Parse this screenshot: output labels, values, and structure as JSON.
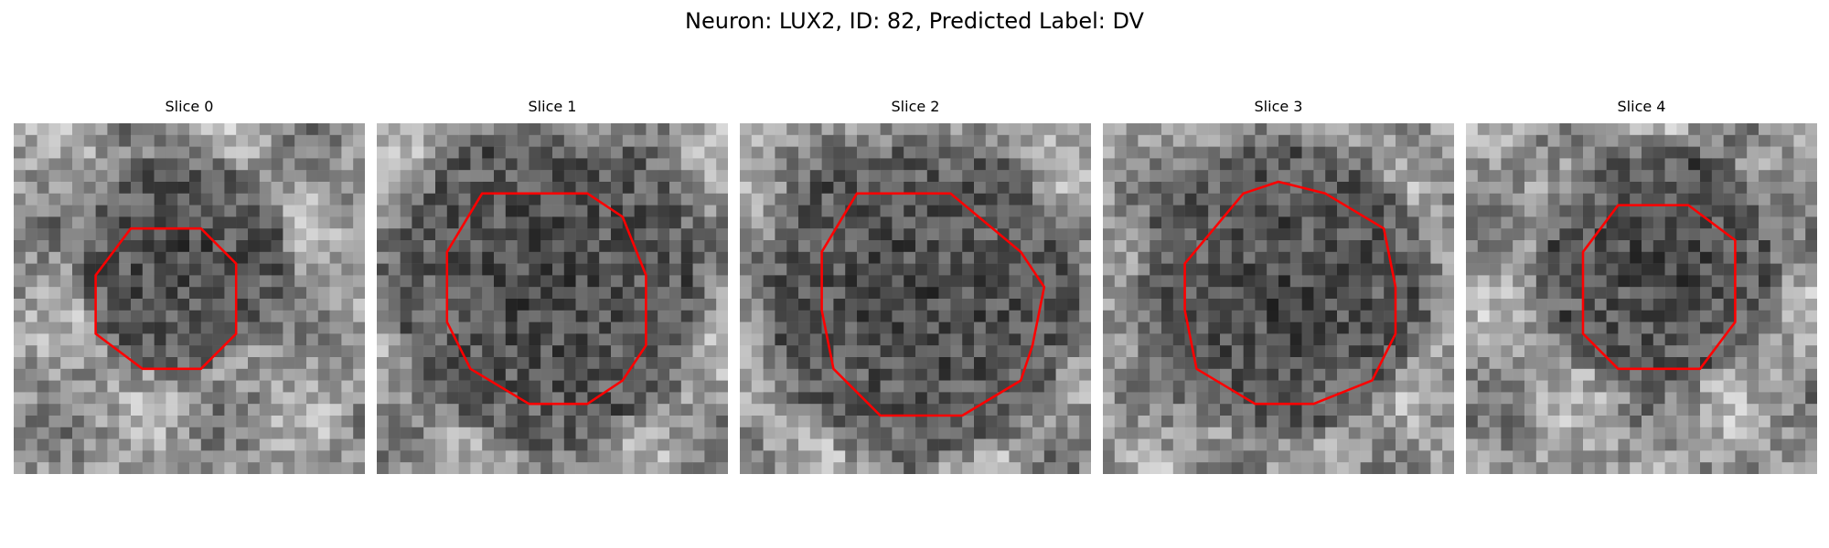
{
  "figure": {
    "title": "Neuron: LUX2, ID: 82, Predicted Label: DV",
    "contour_color": "#ff0000",
    "panels": [
      {
        "title": "Slice 0",
        "grid": 30,
        "dark_center": [
          14.5,
          12.0
        ],
        "dark_radius": 8,
        "contour": [
          [
            10,
            9
          ],
          [
            16,
            9
          ],
          [
            19,
            12
          ],
          [
            19,
            18
          ],
          [
            16,
            21
          ],
          [
            11,
            21
          ],
          [
            7,
            18
          ],
          [
            7,
            13
          ]
        ]
      },
      {
        "title": "Slice 1",
        "grid": 30,
        "dark_center": [
          14.5,
          14.0
        ],
        "dark_radius": 12,
        "contour": [
          [
            9,
            6
          ],
          [
            18,
            6
          ],
          [
            21,
            8
          ],
          [
            23,
            13
          ],
          [
            23,
            19
          ],
          [
            21,
            22
          ],
          [
            18,
            24
          ],
          [
            13,
            24
          ],
          [
            8,
            21
          ],
          [
            6,
            17
          ],
          [
            6,
            11
          ]
        ]
      },
      {
        "title": "Slice 2",
        "grid": 30,
        "dark_center": [
          15.5,
          15.0
        ],
        "dark_radius": 12,
        "contour": [
          [
            10,
            6
          ],
          [
            18,
            6
          ],
          [
            24,
            11
          ],
          [
            26,
            14
          ],
          [
            25,
            19
          ],
          [
            24,
            22
          ],
          [
            19,
            25
          ],
          [
            12,
            25
          ],
          [
            8,
            21
          ],
          [
            7,
            16
          ],
          [
            7,
            11
          ]
        ]
      },
      {
        "title": "Slice 3",
        "grid": 30,
        "dark_center": [
          15.5,
          14.0
        ],
        "dark_radius": 11,
        "contour": [
          [
            12,
            6
          ],
          [
            15,
            5
          ],
          [
            19,
            6
          ],
          [
            24,
            9
          ],
          [
            25,
            14
          ],
          [
            25,
            18
          ],
          [
            23,
            22
          ],
          [
            18,
            24
          ],
          [
            13,
            24
          ],
          [
            8,
            21
          ],
          [
            7,
            16
          ],
          [
            7,
            12
          ]
        ]
      },
      {
        "title": "Slice 4",
        "grid": 30,
        "dark_center": [
          16.5,
          12.0
        ],
        "dark_radius": 9,
        "contour": [
          [
            13,
            7
          ],
          [
            19,
            7
          ],
          [
            23,
            10
          ],
          [
            23,
            17
          ],
          [
            20,
            21
          ],
          [
            13,
            21
          ],
          [
            10,
            18
          ],
          [
            10,
            11
          ]
        ]
      }
    ]
  }
}
